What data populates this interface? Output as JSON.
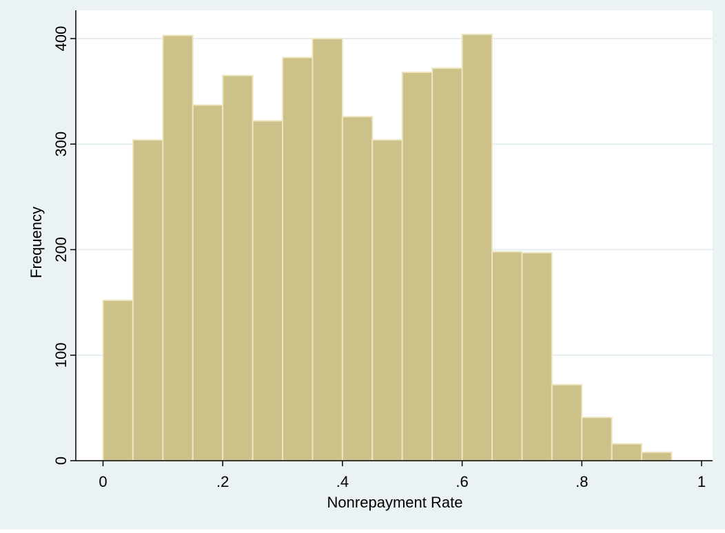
{
  "chart_data": {
    "type": "bar",
    "xlabel": "Nonrepayment Rate",
    "ylabel": "Frequency",
    "xlim": [
      -0.045,
      1.03
    ],
    "ylim": [
      0,
      420
    ],
    "bin_width": 0.05,
    "bins": [
      {
        "x0": 0.0,
        "x1": 0.05,
        "value": 152
      },
      {
        "x0": 0.05,
        "x1": 0.1,
        "value": 304
      },
      {
        "x0": 0.1,
        "x1": 0.15,
        "value": 403
      },
      {
        "x0": 0.15,
        "x1": 0.2,
        "value": 337
      },
      {
        "x0": 0.2,
        "x1": 0.25,
        "value": 365
      },
      {
        "x0": 0.25,
        "x1": 0.3,
        "value": 322
      },
      {
        "x0": 0.3,
        "x1": 0.35,
        "value": 382
      },
      {
        "x0": 0.35,
        "x1": 0.4,
        "value": 400
      },
      {
        "x0": 0.4,
        "x1": 0.45,
        "value": 326
      },
      {
        "x0": 0.45,
        "x1": 0.5,
        "value": 304
      },
      {
        "x0": 0.5,
        "x1": 0.55,
        "value": 368
      },
      {
        "x0": 0.55,
        "x1": 0.6,
        "value": 372
      },
      {
        "x0": 0.6,
        "x1": 0.65,
        "value": 404
      },
      {
        "x0": 0.65,
        "x1": 0.7,
        "value": 198
      },
      {
        "x0": 0.7,
        "x1": 0.75,
        "value": 197
      },
      {
        "x0": 0.75,
        "x1": 0.8,
        "value": 72
      },
      {
        "x0": 0.8,
        "x1": 0.85,
        "value": 41
      },
      {
        "x0": 0.85,
        "x1": 0.9,
        "value": 16
      },
      {
        "x0": 0.9,
        "x1": 0.95,
        "value": 8
      }
    ],
    "xticks": [
      {
        "value": 0,
        "label": "0"
      },
      {
        "value": 0.2,
        "label": ".2"
      },
      {
        "value": 0.4,
        "label": ".4"
      },
      {
        "value": 0.6,
        "label": ".6"
      },
      {
        "value": 0.8,
        "label": ".8"
      },
      {
        "value": 1,
        "label": "1"
      }
    ],
    "yticks": [
      {
        "value": 0,
        "label": "0"
      },
      {
        "value": 100,
        "label": "100"
      },
      {
        "value": 200,
        "label": "200"
      },
      {
        "value": 300,
        "label": "300"
      },
      {
        "value": 400,
        "label": "400"
      }
    ],
    "grid": true,
    "colors": {
      "outer_background": "#eaf2f3",
      "plot_background": "#ffffff",
      "bar_fill": "#ccc189",
      "bar_edge": "#ede6c0",
      "grid_line": "#e4eef0",
      "axis": "#000000"
    }
  }
}
